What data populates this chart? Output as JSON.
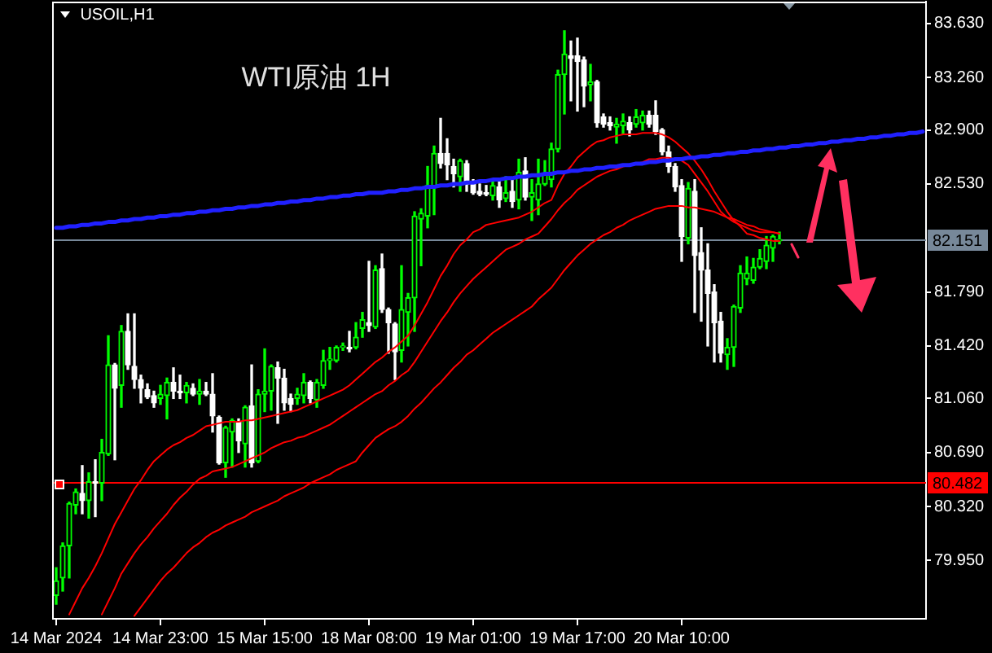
{
  "chart_data": {
    "type": "candlestick",
    "title": "WTI原油 1H",
    "subtitle": "USOIL,H1",
    "categories": [
      "14 Mar 2024",
      null,
      null,
      null,
      null,
      null,
      null,
      null,
      null,
      null,
      null,
      null,
      null,
      null,
      null,
      null,
      "14 Mar 23:00",
      null,
      null,
      null,
      null,
      null,
      null,
      null,
      null,
      null,
      null,
      null,
      null,
      null,
      null,
      null,
      "15 Mar 15:00",
      null,
      null,
      null,
      null,
      null,
      null,
      null,
      null,
      null,
      null,
      null,
      null,
      null,
      null,
      null,
      "18 Mar 08:00",
      null,
      null,
      null,
      null,
      null,
      null,
      null,
      null,
      null,
      null,
      null,
      null,
      null,
      null,
      null,
      "19 Mar 01:00",
      null,
      null,
      null,
      null,
      null,
      null,
      null,
      null,
      null,
      null,
      null,
      null,
      null,
      null,
      null,
      "19 Mar 17:00",
      null,
      null,
      null,
      null,
      null,
      null,
      null,
      null,
      null,
      null,
      null,
      null,
      null,
      null,
      null,
      "20 Mar 10:00",
      null,
      null,
      null,
      null,
      null,
      null,
      null,
      null,
      null,
      null,
      null,
      null,
      null,
      null,
      null,
      null,
      null,
      null,
      null,
      null,
      null,
      null,
      null,
      null,
      null,
      null,
      null,
      null,
      null,
      null,
      null,
      null,
      null,
      null,
      null,
      null,
      null
    ],
    "ohlc": [
      [
        79.71,
        79.9,
        79.65,
        79.81
      ],
      [
        79.83,
        80.07,
        79.74,
        80.05
      ],
      [
        80.05,
        80.35,
        79.83,
        80.34
      ],
      [
        80.33,
        80.44,
        80.27,
        80.42
      ],
      [
        80.41,
        80.6,
        80.27,
        80.36
      ],
      [
        80.36,
        80.55,
        80.24,
        80.49
      ],
      [
        80.49,
        80.64,
        80.25,
        80.48
      ],
      [
        80.48,
        80.78,
        80.36,
        80.69
      ],
      [
        80.68,
        81.49,
        80.67,
        81.29
      ],
      [
        81.29,
        81.3,
        80.64,
        81.13
      ],
      [
        81.15,
        81.56,
        81.0,
        81.52
      ],
      [
        81.52,
        81.64,
        81.26,
        81.29
      ],
      [
        81.28,
        81.64,
        81.13,
        81.19
      ],
      [
        81.19,
        81.22,
        81.03,
        81.13
      ],
      [
        81.12,
        81.16,
        81.06,
        81.07
      ],
      [
        81.08,
        81.11,
        81.0,
        81.03
      ],
      [
        81.06,
        81.15,
        81.02,
        81.09
      ],
      [
        81.08,
        81.2,
        80.92,
        81.17
      ],
      [
        81.17,
        81.27,
        81.06,
        81.11
      ],
      [
        81.11,
        81.22,
        81.06,
        81.1
      ],
      [
        81.1,
        81.17,
        81.03,
        81.15
      ],
      [
        81.13,
        81.16,
        81.08,
        81.09
      ],
      [
        81.09,
        81.19,
        81.02,
        81.11
      ],
      [
        81.11,
        81.17,
        81.08,
        81.09
      ],
      [
        81.09,
        81.23,
        80.83,
        80.94
      ],
      [
        80.93,
        80.94,
        80.61,
        80.62
      ],
      [
        80.62,
        80.87,
        80.52,
        80.86
      ],
      [
        80.83,
        80.92,
        80.59,
        80.91
      ],
      [
        80.9,
        80.92,
        80.69,
        80.77
      ],
      [
        80.75,
        81.01,
        80.59,
        81.0
      ],
      [
        81.01,
        81.29,
        80.59,
        80.62
      ],
      [
        80.63,
        81.12,
        80.62,
        81.09
      ],
      [
        81.09,
        81.4,
        80.97,
        81.11
      ],
      [
        81.11,
        81.29,
        80.98,
        81.28
      ],
      [
        81.27,
        81.31,
        80.89,
        81.2
      ],
      [
        81.2,
        81.26,
        80.98,
        81.03
      ],
      [
        81.06,
        81.09,
        80.97,
        81.02
      ],
      [
        81.06,
        81.13,
        81.02,
        81.09
      ],
      [
        81.08,
        81.23,
        81.03,
        81.17
      ],
      [
        81.17,
        81.18,
        81.03,
        81.06
      ],
      [
        81.05,
        81.19,
        81.0,
        81.17
      ],
      [
        81.15,
        81.39,
        81.13,
        81.32
      ],
      [
        81.32,
        81.41,
        81.26,
        81.33
      ],
      [
        81.32,
        81.42,
        81.31,
        81.41
      ],
      [
        81.41,
        81.44,
        81.39,
        81.42
      ],
      [
        81.41,
        81.52,
        81.38,
        81.4
      ],
      [
        81.41,
        81.58,
        81.4,
        81.48
      ],
      [
        81.54,
        81.65,
        81.48,
        81.6
      ],
      [
        81.58,
        82.0,
        81.52,
        81.56
      ],
      [
        81.55,
        81.97,
        81.54,
        81.94
      ],
      [
        81.95,
        82.05,
        81.65,
        81.67
      ],
      [
        81.67,
        81.68,
        81.37,
        81.58
      ],
      [
        81.57,
        81.58,
        81.19,
        81.38
      ],
      [
        81.39,
        81.97,
        81.31,
        81.67
      ],
      [
        81.65,
        81.78,
        81.42,
        81.75
      ],
      [
        81.75,
        82.34,
        81.52,
        82.31
      ],
      [
        82.29,
        82.36,
        81.97,
        82.33
      ],
      [
        82.31,
        82.65,
        82.23,
        82.52
      ],
      [
        82.51,
        82.79,
        82.32,
        82.74
      ],
      [
        82.74,
        82.98,
        82.64,
        82.67
      ],
      [
        82.74,
        82.84,
        82.56,
        82.66
      ],
      [
        82.65,
        82.7,
        82.51,
        82.6
      ],
      [
        82.58,
        82.7,
        82.48,
        82.69
      ],
      [
        82.67,
        82.69,
        82.48,
        82.53
      ],
      [
        82.54,
        82.56,
        82.46,
        82.47
      ],
      [
        82.48,
        82.53,
        82.45,
        82.46
      ],
      [
        82.47,
        82.52,
        82.45,
        82.46
      ],
      [
        82.45,
        82.56,
        82.42,
        82.52
      ],
      [
        82.51,
        82.56,
        82.37,
        82.42
      ],
      [
        82.43,
        82.58,
        82.41,
        82.47
      ],
      [
        82.48,
        82.56,
        82.37,
        82.41
      ],
      [
        82.42,
        82.7,
        82.36,
        82.61
      ],
      [
        82.62,
        82.71,
        82.42,
        82.44
      ],
      [
        82.44,
        82.56,
        82.28,
        82.47
      ],
      [
        82.42,
        82.7,
        82.32,
        82.53
      ],
      [
        82.53,
        82.69,
        82.52,
        82.6
      ],
      [
        82.56,
        82.81,
        82.51,
        82.77
      ],
      [
        82.77,
        83.31,
        82.75,
        83.28
      ],
      [
        83.28,
        83.58,
        83.01,
        83.42
      ],
      [
        83.41,
        83.51,
        83.1,
        83.39
      ],
      [
        83.41,
        83.53,
        83.03,
        83.37
      ],
      [
        83.38,
        83.4,
        83.06,
        83.2
      ],
      [
        83.21,
        83.35,
        83.1,
        83.23
      ],
      [
        83.23,
        83.24,
        82.92,
        82.95
      ],
      [
        82.99,
        83.01,
        82.92,
        82.94
      ],
      [
        82.95,
        82.99,
        82.9,
        82.93
      ],
      [
        82.92,
        82.98,
        82.81,
        82.94
      ],
      [
        82.93,
        83.01,
        82.87,
        82.96
      ],
      [
        82.95,
        82.99,
        82.86,
        82.9
      ],
      [
        82.94,
        83.04,
        82.92,
        82.99
      ],
      [
        82.95,
        83.03,
        82.9,
        83.0
      ],
      [
        83.0,
        83.03,
        82.92,
        82.94
      ],
      [
        83.0,
        83.1,
        82.87,
        82.89
      ],
      [
        82.9,
        82.91,
        82.73,
        82.75
      ],
      [
        82.75,
        82.79,
        82.61,
        82.65
      ],
      [
        82.65,
        82.67,
        82.48,
        82.51
      ],
      [
        82.52,
        82.56,
        82.0,
        82.17
      ],
      [
        82.16,
        82.54,
        82.12,
        82.5
      ],
      [
        82.48,
        82.56,
        81.65,
        82.04
      ],
      [
        82.06,
        82.23,
        81.59,
        81.94
      ],
      [
        81.94,
        82.12,
        81.42,
        81.78
      ],
      [
        81.79,
        81.84,
        81.31,
        81.58
      ],
      [
        81.59,
        81.65,
        81.31,
        81.37
      ],
      [
        81.36,
        81.47,
        81.26,
        81.41
      ],
      [
        81.41,
        81.7,
        81.28,
        81.69
      ],
      [
        81.68,
        81.97,
        81.65,
        81.92
      ],
      [
        81.88,
        82.03,
        81.84,
        81.92
      ],
      [
        81.87,
        82.02,
        81.85,
        81.96
      ],
      [
        81.96,
        82.08,
        81.95,
        82.02
      ],
      [
        82.0,
        82.17,
        81.95,
        82.11
      ],
      [
        82.09,
        82.18,
        82.0,
        82.17
      ],
      [
        82.14,
        82.2,
        82.12,
        82.15
      ],
      null,
      null,
      null,
      null,
      null,
      null,
      null,
      null,
      null,
      null,
      null,
      null,
      null,
      null,
      null,
      null,
      null,
      null,
      null,
      null,
      null,
      null
    ],
    "colors": [
      "#00ff00",
      "#00ff00",
      "#00ff00",
      "#00ff00",
      "#ffffff",
      "#00ff00",
      "#ffffff",
      "#00ff00",
      "#00ff00",
      "#ffffff",
      "#00ff00",
      "#ffffff",
      "#ffffff",
      "#ffffff",
      "#ffffff",
      "#ffffff",
      "#00ff00",
      "#00ff00",
      "#ffffff",
      "#ffffff",
      "#00ff00",
      "#ffffff",
      "#00ff00",
      "#ffffff",
      "#ffffff",
      "#ffffff",
      "#00ff00",
      "#00ff00",
      "#ffffff",
      "#00ff00",
      "#ffffff",
      "#00ff00",
      "#00ff00",
      "#00ff00",
      "#ffffff",
      "#ffffff",
      "#ffffff",
      "#00ff00",
      "#00ff00",
      "#ffffff",
      "#00ff00",
      "#00ff00",
      "#00ff00",
      "#00ff00",
      "#00ff00",
      "#ffffff",
      "#00ff00",
      "#00ff00",
      "#ffffff",
      "#00ff00",
      "#ffffff",
      "#ffffff",
      "#ffffff",
      "#00ff00",
      "#00ff00",
      "#00ff00",
      "#00ff00",
      "#00ff00",
      "#00ff00",
      "#ffffff",
      "#ffffff",
      "#ffffff",
      "#00ff00",
      "#ffffff",
      "#ffffff",
      "#ffffff",
      "#ffffff",
      "#00ff00",
      "#ffffff",
      "#00ff00",
      "#ffffff",
      "#00ff00",
      "#ffffff",
      "#00ff00",
      "#00ff00",
      "#00ff00",
      "#00ff00",
      "#00ff00",
      "#00ff00",
      "#ffffff",
      "#ffffff",
      "#ffffff",
      "#00ff00",
      "#ffffff",
      "#ffffff",
      "#ffffff",
      "#00ff00",
      "#00ff00",
      "#ffffff",
      "#00ff00",
      "#00ff00",
      "#ffffff",
      "#ffffff",
      "#ffffff",
      "#ffffff",
      "#ffffff",
      "#ffffff",
      "#00ff00",
      "#ffffff",
      "#ffffff",
      "#ffffff",
      "#ffffff",
      "#ffffff",
      "#00ff00",
      "#00ff00",
      "#00ff00",
      "#00ff00",
      "#00ff00",
      "#00ff00",
      "#00ff00",
      "#00ff00",
      "#00ff00",
      null,
      null,
      null,
      null,
      null,
      null,
      null,
      null,
      null,
      null,
      null,
      null,
      null,
      null,
      null,
      null,
      null,
      null,
      null,
      null,
      null,
      null
    ],
    "series": [
      {
        "type": "line",
        "color": "#ff0000",
        "values": [
          null,
          null,
          79.58,
          79.67,
          79.76,
          79.83,
          79.91,
          80.0,
          80.1,
          80.2,
          80.28,
          80.36,
          80.44,
          80.5,
          80.57,
          80.63,
          80.67,
          80.71,
          80.74,
          80.76,
          80.79,
          80.81,
          80.84,
          80.87,
          80.88,
          80.89,
          80.9,
          80.9,
          80.9,
          80.91,
          80.91,
          80.92,
          80.93,
          80.94,
          80.95,
          80.96,
          80.97,
          80.98,
          81.0,
          81.02,
          81.04,
          81.06,
          81.08,
          81.1,
          81.12,
          81.15,
          81.19,
          81.23,
          81.27,
          81.31,
          81.34,
          81.38,
          81.41,
          81.45,
          81.49,
          81.56,
          81.64,
          81.72,
          81.81,
          81.9,
          81.97,
          82.05,
          82.11,
          82.15,
          82.2,
          82.22,
          82.25,
          82.26,
          82.27,
          82.28,
          82.29,
          82.3,
          82.32,
          82.34,
          82.37,
          82.4,
          82.42,
          82.52,
          82.6,
          82.65,
          82.71,
          82.75,
          82.79,
          82.82,
          82.83,
          82.85,
          82.86,
          82.87,
          82.87,
          82.87,
          82.88,
          82.88,
          82.88,
          82.87,
          82.85,
          82.82,
          82.78,
          82.74,
          82.69,
          82.63,
          82.56,
          82.48,
          82.41,
          82.34,
          82.28,
          82.24,
          82.19,
          82.18,
          82.16,
          82.15,
          82.14,
          82.14,
          null,
          null,
          null,
          null,
          null,
          null,
          null,
          null,
          null,
          null,
          null,
          null,
          null,
          null,
          null,
          null,
          null,
          null,
          null,
          null,
          null,
          null
        ]
      },
      {
        "type": "line",
        "color": "#ff0000",
        "values": [
          null,
          null,
          null,
          null,
          null,
          null,
          null,
          79.58,
          79.67,
          79.76,
          79.86,
          79.93,
          80.0,
          80.06,
          80.11,
          80.17,
          80.22,
          80.27,
          80.33,
          80.38,
          80.42,
          80.47,
          80.51,
          80.53,
          80.56,
          80.57,
          80.58,
          80.59,
          80.61,
          80.63,
          80.65,
          80.67,
          80.69,
          80.72,
          80.74,
          80.76,
          80.77,
          80.79,
          80.8,
          80.82,
          80.84,
          80.86,
          80.88,
          80.91,
          80.94,
          80.97,
          81.0,
          81.03,
          81.06,
          81.09,
          81.11,
          81.15,
          81.18,
          81.22,
          81.25,
          81.31,
          81.38,
          81.45,
          81.52,
          81.59,
          81.65,
          81.72,
          81.78,
          81.83,
          81.88,
          81.92,
          81.96,
          82.0,
          82.04,
          82.08,
          82.1,
          82.12,
          82.15,
          82.17,
          82.19,
          82.24,
          82.29,
          82.35,
          82.4,
          82.44,
          82.49,
          82.52,
          82.55,
          82.58,
          82.6,
          82.62,
          82.63,
          82.65,
          82.66,
          82.67,
          82.68,
          82.7,
          82.7,
          82.71,
          82.71,
          82.7,
          82.69,
          82.66,
          82.6,
          82.54,
          82.48,
          82.41,
          82.34,
          82.3,
          82.27,
          82.25,
          82.23,
          82.21,
          82.2,
          82.2,
          82.2,
          82.19,
          null,
          null,
          null,
          null,
          null,
          null,
          null,
          null,
          null,
          null,
          null,
          null,
          null,
          null,
          null,
          null,
          null,
          null,
          null,
          null,
          null,
          null
        ]
      },
      {
        "type": "line",
        "color": "#ff0000",
        "values": [
          null,
          null,
          null,
          null,
          null,
          null,
          null,
          null,
          null,
          null,
          null,
          null,
          79.57,
          79.63,
          79.69,
          79.75,
          79.81,
          79.86,
          79.9,
          79.95,
          80.0,
          80.04,
          80.07,
          80.11,
          80.14,
          80.16,
          80.19,
          80.21,
          80.23,
          80.25,
          80.28,
          80.3,
          80.32,
          80.34,
          80.36,
          80.39,
          80.41,
          80.43,
          80.45,
          80.48,
          80.5,
          80.52,
          80.54,
          80.57,
          80.59,
          80.61,
          80.63,
          80.69,
          80.74,
          80.79,
          80.82,
          80.85,
          80.87,
          80.9,
          80.94,
          80.99,
          81.03,
          81.08,
          81.13,
          81.17,
          81.22,
          81.27,
          81.31,
          81.36,
          81.39,
          81.43,
          81.47,
          81.51,
          81.54,
          81.57,
          81.6,
          81.63,
          81.66,
          81.69,
          81.74,
          81.78,
          81.82,
          81.88,
          81.94,
          81.99,
          82.04,
          82.08,
          82.12,
          82.15,
          82.18,
          82.2,
          82.23,
          82.25,
          82.28,
          82.3,
          82.32,
          82.34,
          82.36,
          82.37,
          82.38,
          82.38,
          82.38,
          82.37,
          82.37,
          82.36,
          82.35,
          82.34,
          82.32,
          82.3,
          82.29,
          82.27,
          82.25,
          82.24,
          82.22,
          82.21,
          82.2,
          82.19,
          null,
          null,
          null,
          null,
          null,
          null,
          null,
          null,
          null,
          null,
          null,
          null,
          null,
          null,
          null,
          null,
          null,
          null,
          null,
          null,
          null,
          null
        ]
      },
      {
        "type": "line",
        "color": "#2020ff",
        "values": [
          82.23,
          82.23,
          82.24,
          82.24,
          82.25,
          82.25,
          82.26,
          82.26,
          82.27,
          82.27,
          82.28,
          82.28,
          82.29,
          82.29,
          82.3,
          82.3,
          82.31,
          82.31,
          82.32,
          82.32,
          82.33,
          82.33,
          82.34,
          82.34,
          82.35,
          82.35,
          82.36,
          82.36,
          82.37,
          82.37,
          82.38,
          82.38,
          82.39,
          82.39,
          82.4,
          82.4,
          82.41,
          82.41,
          82.42,
          82.42,
          82.43,
          82.43,
          82.44,
          82.44,
          82.45,
          82.45,
          82.46,
          82.46,
          82.47,
          82.47,
          82.47,
          82.48,
          82.48,
          82.49,
          82.49,
          82.5,
          82.5,
          82.51,
          82.51,
          82.52,
          82.52,
          82.53,
          82.53,
          82.54,
          82.54,
          82.55,
          82.55,
          82.56,
          82.56,
          82.57,
          82.57,
          82.58,
          82.58,
          82.59,
          82.59,
          82.6,
          82.6,
          82.61,
          82.61,
          82.62,
          82.62,
          82.63,
          82.63,
          82.64,
          82.64,
          82.65,
          82.65,
          82.66,
          82.66,
          82.67,
          82.67,
          82.68,
          82.68,
          82.69,
          82.69,
          82.7,
          82.7,
          82.71,
          82.71,
          82.72,
          82.72,
          82.73,
          82.73,
          82.74,
          82.74,
          82.75,
          82.75,
          82.76,
          82.76,
          82.77,
          82.77,
          82.78,
          82.78,
          82.79,
          82.79,
          82.8,
          82.8,
          82.81,
          82.81,
          82.82,
          82.82,
          82.83,
          82.83,
          82.84,
          82.84,
          82.85,
          82.85,
          82.86,
          82.86,
          82.87,
          82.87,
          82.88,
          82.88,
          82.89
        ]
      }
    ],
    "ylim": [
      79.55,
      83.78
    ],
    "yticks": [
      {
        "value": 79.95,
        "label": "79.950"
      },
      {
        "value": 80.32,
        "label": "80.320"
      },
      {
        "value": 80.69,
        "label": "80.690"
      },
      {
        "value": 81.06,
        "label": "81.060"
      },
      {
        "value": 81.42,
        "label": "81.420"
      },
      {
        "value": 81.79,
        "label": "81.790"
      },
      {
        "value": 82.53,
        "label": "82.530"
      },
      {
        "value": 82.9,
        "label": "82.900"
      },
      {
        "value": 83.26,
        "label": "83.260"
      },
      {
        "value": 83.63,
        "label": "83.630"
      }
    ],
    "ref_lines": [
      {
        "axis": "y",
        "value": 82.151,
        "label": "82.151",
        "color": "#778899"
      },
      {
        "axis": "y",
        "value": 80.482,
        "label": "80.482",
        "color": "#ff0000"
      }
    ]
  }
}
